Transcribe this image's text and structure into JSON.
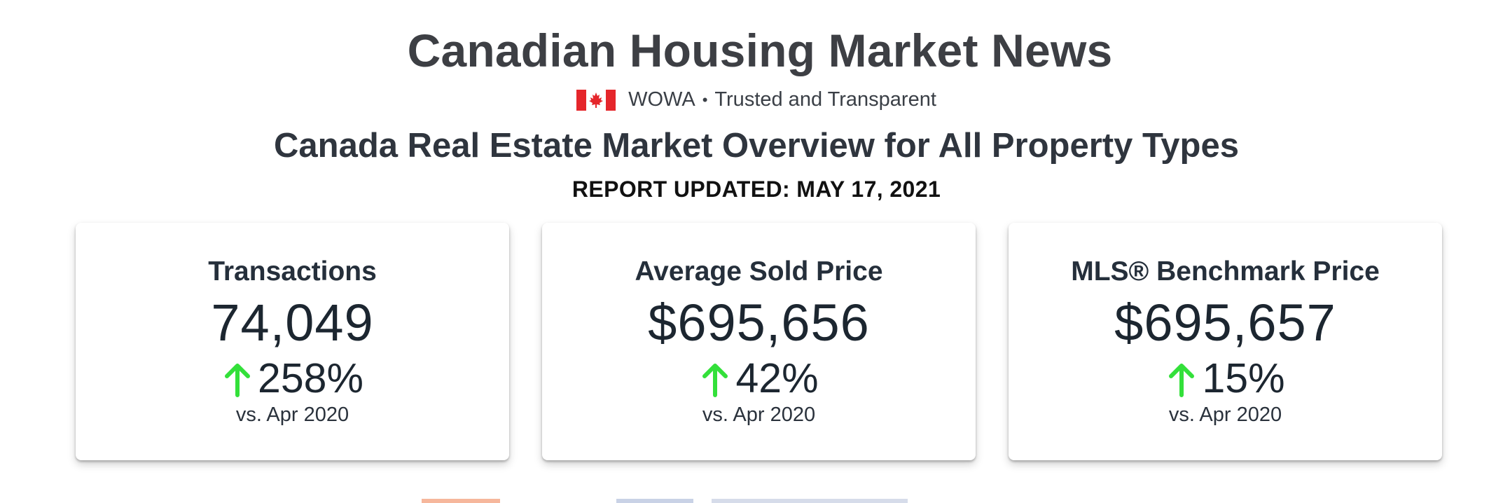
{
  "header": {
    "title": "Canadian Housing Market News",
    "brand": "WOWA",
    "separator": "•",
    "tagline": "Trusted and Transparent",
    "flag_icon": "canada-flag-icon"
  },
  "overview": {
    "title": "Canada Real Estate Market Overview for All Property Types",
    "report_updated": "REPORT UPDATED: MAY 17, 2021"
  },
  "cards": [
    {
      "label": "Transactions",
      "value": "74,049",
      "change": "258%",
      "change_direction": "up",
      "compare": "vs. Apr 2020"
    },
    {
      "label": "Average Sold Price",
      "value": "$695,656",
      "change": "42%",
      "change_direction": "up",
      "compare": "vs. Apr 2020"
    },
    {
      "label": "MLS® Benchmark Price",
      "value": "$695,657",
      "change": "15%",
      "change_direction": "up",
      "compare": "vs. Apr 2020"
    }
  ],
  "colors": {
    "arrow_up": "#33e03a",
    "flag_red": "#e5262b",
    "text_dark": "#1c2630"
  }
}
